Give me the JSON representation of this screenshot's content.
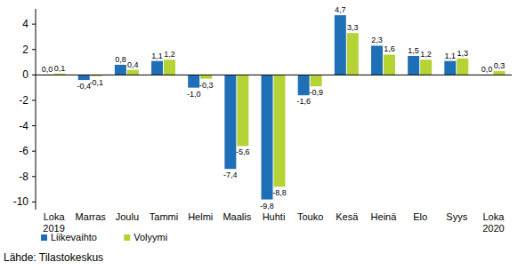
{
  "chart_data": {
    "type": "bar",
    "categories": [
      "Loka 2019",
      "Marras",
      "Joulu",
      "Tammi",
      "Helmi",
      "Maalis",
      "Huhti",
      "Touko",
      "Kesä",
      "Heinä",
      "Elo",
      "Syys",
      "Loka 2020"
    ],
    "series": [
      {
        "name": "Liikevaihto",
        "color": "#1f6fb6",
        "values": [
          0.0,
          -0.4,
          0.8,
          1.1,
          -1.0,
          -7.4,
          -9.8,
          -1.6,
          4.7,
          2.3,
          1.5,
          1.1,
          0.0
        ],
        "value_labels": [
          "0,0",
          "-0,4",
          "0,8",
          "1,1",
          "-1,0",
          "-7,4",
          "-9,8",
          "-1,6",
          "4,7",
          "2,3",
          "1,5",
          "1,1",
          "0,0"
        ]
      },
      {
        "name": "Volyymi",
        "color": "#b5d334",
        "values": [
          0.1,
          -0.1,
          0.4,
          1.2,
          -0.3,
          -5.6,
          -8.8,
          -0.9,
          3.3,
          1.6,
          1.2,
          1.3,
          0.3
        ],
        "value_labels": [
          "0,1",
          "-0,1",
          "0,4",
          "1,2",
          "-0,3",
          "-5,6",
          "-8,8",
          "-0,9",
          "3,3",
          "1,6",
          "1,2",
          "1,3",
          "0,3"
        ]
      }
    ],
    "ylim": [
      -10.6,
      5.2
    ],
    "yticks": [
      -10,
      -8,
      -6,
      -4,
      -2,
      0,
      2,
      4
    ],
    "grid": false,
    "data_labels": true,
    "legend": "bottom-left",
    "source": "Lähde: Tilastokeskus"
  }
}
